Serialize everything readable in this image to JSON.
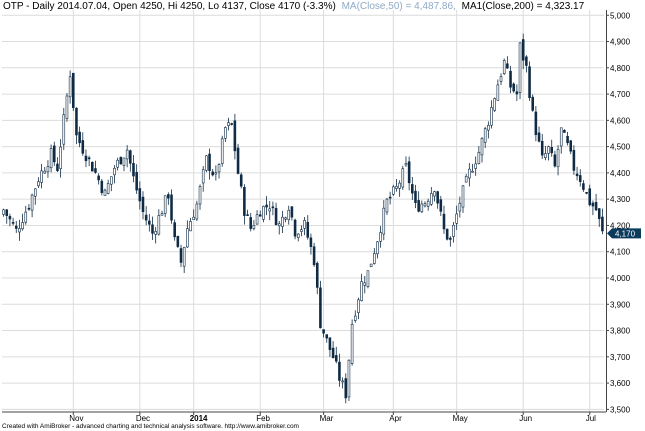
{
  "header": {
    "symbol_text": "OTP - Daily 2014.07.04, Open 4250, Hi 4250, Lo 4137, Close 4170 (-3.3%)",
    "ma50_text": "MA(Close,50) = 4,487.86,",
    "ma200_text": "MA1(Close,200) = 4,323.17",
    "ma50_color": "#8ea9c6"
  },
  "footer": {
    "text": "Created with AmiBroker - advanced charting and technical analysis software. http://www.amibroker.com"
  },
  "chart_data": {
    "type": "candlestick",
    "price_label": "4,170",
    "price_label_value": 4170,
    "ylim": [
      3490,
      5020
    ],
    "y_ticks": [
      {
        "value": 3500,
        "label": "3,500"
      },
      {
        "value": 3600,
        "label": "3,600"
      },
      {
        "value": 3700,
        "label": "3,700"
      },
      {
        "value": 3800,
        "label": "3,800"
      },
      {
        "value": 3900,
        "label": "3,900"
      },
      {
        "value": 4000,
        "label": "4,000"
      },
      {
        "value": 4100,
        "label": "4,100"
      },
      {
        "value": 4200,
        "label": "4,200"
      },
      {
        "value": 4300,
        "label": "4,300"
      },
      {
        "value": 4400,
        "label": "4,400"
      },
      {
        "value": 4500,
        "label": "4,500"
      },
      {
        "value": 4600,
        "label": "4,600"
      },
      {
        "value": 4700,
        "label": "4,700"
      },
      {
        "value": 4800,
        "label": "4,800"
      },
      {
        "value": 4900,
        "label": "4,900"
      },
      {
        "value": 5000,
        "label": "5,000"
      }
    ],
    "x_ticks": [
      {
        "index": 22,
        "label": "Nov",
        "bold": false
      },
      {
        "index": 43,
        "label": "Dec",
        "bold": false
      },
      {
        "index": 60,
        "label": "2014",
        "bold": true
      },
      {
        "index": 81,
        "label": "Feb",
        "bold": false
      },
      {
        "index": 101,
        "label": "Mar",
        "bold": false
      },
      {
        "index": 123,
        "label": "Apr",
        "bold": false
      },
      {
        "index": 143,
        "label": "May",
        "bold": false
      },
      {
        "index": 164,
        "label": "Jun",
        "bold": false
      },
      {
        "index": 185,
        "label": "Jul",
        "bold": false
      }
    ],
    "x_count": 190,
    "close_key": [
      [
        0,
        4260
      ],
      [
        4,
        4180
      ],
      [
        8,
        4280
      ],
      [
        11,
        4380
      ],
      [
        15,
        4470
      ],
      [
        17,
        4420
      ],
      [
        19,
        4600
      ],
      [
        21,
        4780
      ],
      [
        23,
        4540
      ],
      [
        26,
        4470
      ],
      [
        29,
        4400
      ],
      [
        32,
        4320
      ],
      [
        35,
        4420
      ],
      [
        39,
        4490
      ],
      [
        41,
        4380
      ],
      [
        44,
        4250
      ],
      [
        47,
        4170
      ],
      [
        50,
        4260
      ],
      [
        52,
        4320
      ],
      [
        54,
        4140
      ],
      [
        56,
        4060
      ],
      [
        58,
        4190
      ],
      [
        61,
        4280
      ],
      [
        64,
        4450
      ],
      [
        67,
        4380
      ],
      [
        70,
        4570
      ],
      [
        72,
        4580
      ],
      [
        74,
        4400
      ],
      [
        76,
        4260
      ],
      [
        78,
        4190
      ],
      [
        81,
        4260
      ],
      [
        84,
        4280
      ],
      [
        87,
        4200
      ],
      [
        90,
        4280
      ],
      [
        92,
        4180
      ],
      [
        95,
        4200
      ],
      [
        98,
        4070
      ],
      [
        100,
        3830
      ],
      [
        102,
        3760
      ],
      [
        104,
        3700
      ],
      [
        106,
        3620
      ],
      [
        108,
        3560
      ],
      [
        110,
        3830
      ],
      [
        113,
        3980
      ],
      [
        115,
        4020
      ],
      [
        118,
        4150
      ],
      [
        121,
        4290
      ],
      [
        124,
        4340
      ],
      [
        127,
        4420
      ],
      [
        130,
        4270
      ],
      [
        133,
        4290
      ],
      [
        136,
        4350
      ],
      [
        139,
        4180
      ],
      [
        141,
        4140
      ],
      [
        144,
        4290
      ],
      [
        147,
        4400
      ],
      [
        150,
        4480
      ],
      [
        153,
        4600
      ],
      [
        156,
        4740
      ],
      [
        158,
        4820
      ],
      [
        160,
        4730
      ],
      [
        162,
        4700
      ],
      [
        163,
        4880
      ],
      [
        165,
        4800
      ],
      [
        167,
        4620
      ],
      [
        170,
        4450
      ],
      [
        172,
        4490
      ],
      [
        174,
        4420
      ],
      [
        176,
        4560
      ],
      [
        178,
        4500
      ],
      [
        180,
        4420
      ],
      [
        182,
        4380
      ],
      [
        185,
        4290
      ],
      [
        187,
        4260
      ],
      [
        189,
        4170
      ]
    ]
  }
}
